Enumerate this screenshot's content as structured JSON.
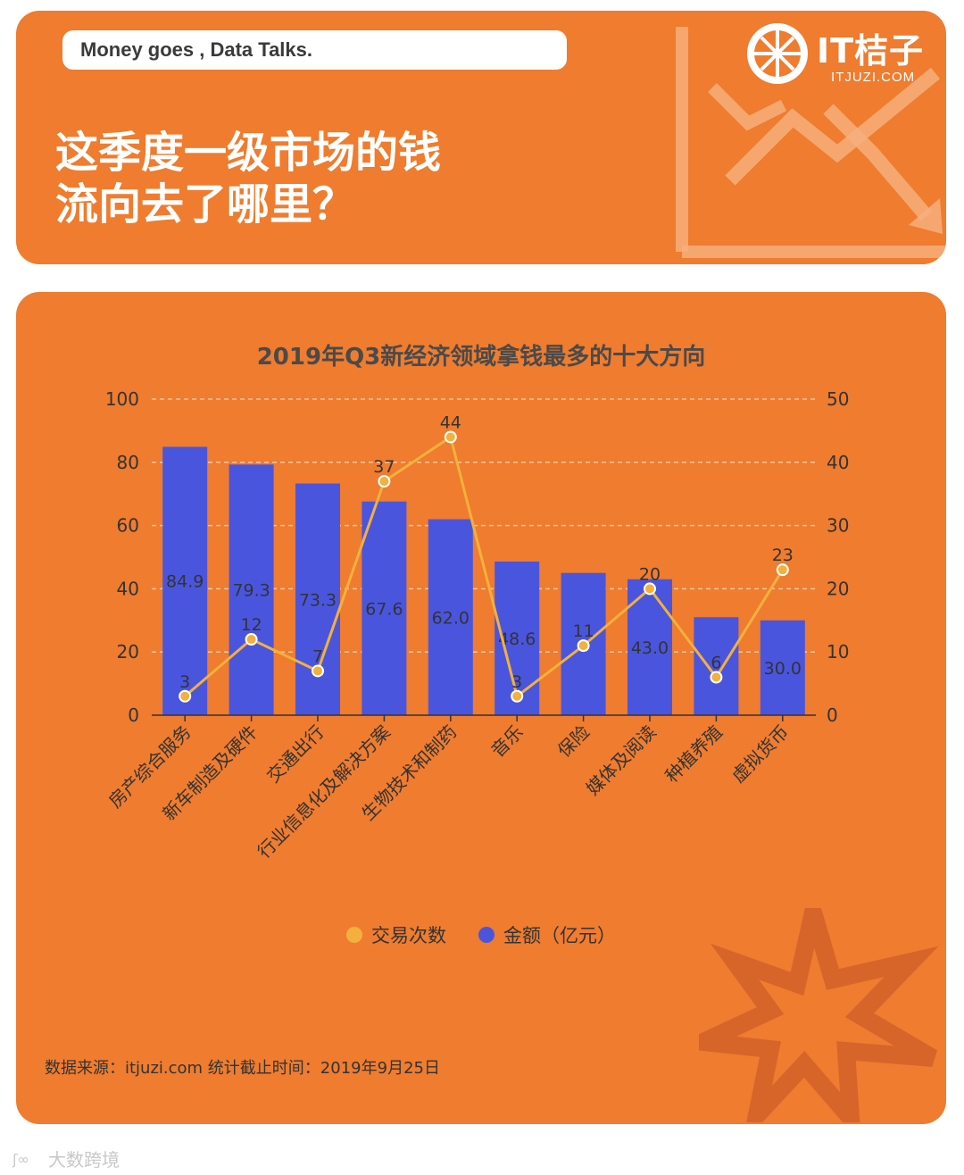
{
  "header": {
    "tagline": "Money goes , Data Talks.",
    "headline_line1": "这季度一级市场的钱",
    "headline_line2": "流向去了哪里？",
    "logo_text": "IT桔子",
    "logo_sub": "ITJUZI.COM"
  },
  "colors": {
    "background": "#ef7c2f",
    "bar": "#4a55de",
    "line": "#f2b13c",
    "text": "#333333"
  },
  "chart_data": {
    "type": "bar",
    "title": "2019年Q3新经济领域拿钱最多的十大方向",
    "categories": [
      "房产综合服务",
      "新车制造及硬件",
      "交通出行",
      "行业信息化及解决方案",
      "生物技术和制药",
      "音乐",
      "保险",
      "媒体及阅读",
      "种植养殖",
      "虚拟货币"
    ],
    "series": [
      {
        "name": "金额（亿元）",
        "type": "bar",
        "axis": "left",
        "values": [
          84.9,
          79.3,
          73.3,
          67.6,
          62.0,
          48.6,
          45.0,
          43.0,
          31.0,
          30.0
        ],
        "labels": [
          "84.9",
          "79.3",
          "73.3",
          "67.6",
          "62.0",
          "48.6",
          "",
          "43.0",
          "",
          "30.0"
        ]
      },
      {
        "name": "交易次数",
        "type": "line",
        "axis": "right",
        "values": [
          3,
          12,
          7,
          37,
          44,
          3,
          11,
          20,
          6,
          23
        ]
      }
    ],
    "ylim": [
      0,
      100
    ],
    "y2lim": [
      0,
      50
    ],
    "yticks": [
      "0",
      "20",
      "40",
      "60",
      "80",
      "100"
    ],
    "y2ticks": [
      "0",
      "10",
      "20",
      "30",
      "40",
      "50"
    ],
    "grid": true,
    "legend": "bottom"
  },
  "legend": {
    "line_label": "交易次数",
    "bar_label": "金额（亿元）"
  },
  "source": "数据来源：itjuzi.com 统计截止时间：2019年9月25日",
  "watermark": "大数跨境"
}
